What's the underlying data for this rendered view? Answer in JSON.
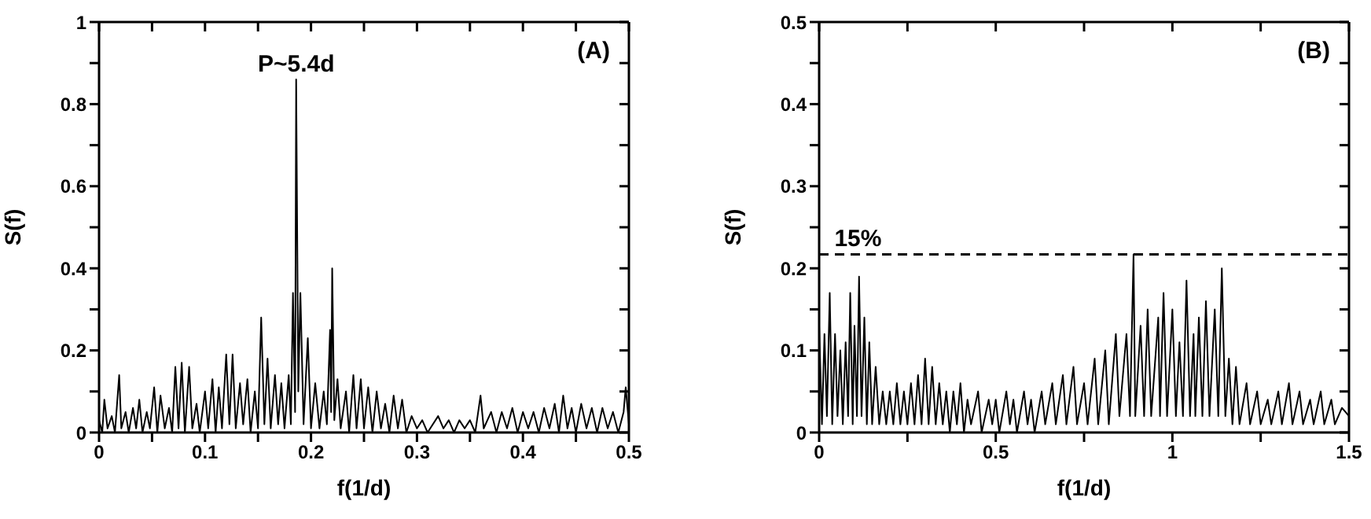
{
  "chart_data": [
    {
      "type": "line",
      "xlabel": "f(1/d)",
      "ylabel": "S(f)",
      "color": "#000000",
      "marker": "none",
      "xlim": [
        0,
        0.5
      ],
      "ylim": [
        0,
        1
      ],
      "xticks": [
        0,
        {
          "value": 0.05,
          "label": null
        },
        0.1,
        {
          "value": 0.15,
          "label": null
        },
        0.2,
        {
          "value": 0.25,
          "label": null
        },
        0.3,
        {
          "value": 0.35,
          "label": null
        },
        0.4,
        {
          "value": 0.45,
          "label": null
        },
        0.5
      ],
      "yticks": [
        0,
        {
          "value": 0.1,
          "label": null
        },
        0.2,
        {
          "value": 0.3,
          "label": null
        },
        0.4,
        {
          "value": 0.5,
          "label": null
        },
        0.6,
        {
          "value": 0.7,
          "label": null
        },
        0.8,
        {
          "value": 0.9,
          "label": null
        },
        1
      ],
      "annotations": [
        {
          "text": "P~5.4d",
          "x": 0.186,
          "y": 0.86
        },
        "(A)"
      ],
      "x": [
        0,
        0.003,
        0.005,
        0.008,
        0.012,
        0.015,
        0.019,
        0.021,
        0.025,
        0.028,
        0.032,
        0.035,
        0.038,
        0.041,
        0.045,
        0.048,
        0.052,
        0.055,
        0.058,
        0.062,
        0.066,
        0.069,
        0.072,
        0.075,
        0.078,
        0.081,
        0.085,
        0.088,
        0.092,
        0.095,
        0.1,
        0.103,
        0.107,
        0.11,
        0.113,
        0.116,
        0.12,
        0.123,
        0.126,
        0.129,
        0.133,
        0.136,
        0.14,
        0.143,
        0.147,
        0.15,
        0.153,
        0.156,
        0.159,
        0.162,
        0.166,
        0.169,
        0.172,
        0.175,
        0.179,
        0.181,
        0.183,
        0.185,
        0.186,
        0.188,
        0.19,
        0.193,
        0.197,
        0.2,
        0.204,
        0.208,
        0.212,
        0.215,
        0.218,
        0.219,
        0.22,
        0.222,
        0.225,
        0.228,
        0.233,
        0.236,
        0.24,
        0.243,
        0.247,
        0.25,
        0.254,
        0.258,
        0.262,
        0.266,
        0.27,
        0.274,
        0.278,
        0.282,
        0.286,
        0.29,
        0.295,
        0.3,
        0.305,
        0.31,
        0.32,
        0.325,
        0.33,
        0.335,
        0.34,
        0.345,
        0.35,
        0.355,
        0.36,
        0.363,
        0.37,
        0.375,
        0.38,
        0.385,
        0.39,
        0.395,
        0.4,
        0.405,
        0.41,
        0.415,
        0.42,
        0.425,
        0.43,
        0.434,
        0.438,
        0.442,
        0.446,
        0.45,
        0.455,
        0.46,
        0.465,
        0.47,
        0.475,
        0.48,
        0.485,
        0.49,
        0.495,
        0.497,
        0.5
      ],
      "values": [
        0.03,
        0.0,
        0.08,
        0.01,
        0.04,
        0.0,
        0.14,
        0.01,
        0.05,
        0.0,
        0.06,
        0.01,
        0.08,
        0.0,
        0.05,
        0.01,
        0.11,
        0.0,
        0.09,
        0.01,
        0.06,
        0.0,
        0.16,
        0.01,
        0.17,
        0.0,
        0.16,
        0.01,
        0.07,
        0.0,
        0.1,
        0.01,
        0.13,
        0.0,
        0.11,
        0.01,
        0.19,
        0.02,
        0.19,
        0.01,
        0.12,
        0.02,
        0.13,
        0.0,
        0.1,
        0.01,
        0.28,
        0.02,
        0.18,
        0.01,
        0.14,
        0.02,
        0.12,
        0.01,
        0.14,
        0.02,
        0.34,
        0.05,
        0.86,
        0.1,
        0.34,
        0.02,
        0.23,
        0.01,
        0.12,
        0.01,
        0.1,
        0.02,
        0.25,
        0.05,
        0.4,
        0.03,
        0.13,
        0.01,
        0.1,
        0.0,
        0.14,
        0.01,
        0.13,
        0.01,
        0.11,
        0.0,
        0.1,
        0.01,
        0.07,
        0.0,
        0.09,
        0.01,
        0.08,
        0.0,
        0.04,
        0.01,
        0.03,
        0.0,
        0.04,
        0.01,
        0.03,
        0.0,
        0.03,
        0.01,
        0.03,
        0.0,
        0.09,
        0.01,
        0.05,
        0.0,
        0.05,
        0.01,
        0.06,
        0.0,
        0.05,
        0.01,
        0.05,
        0.0,
        0.06,
        0.01,
        0.07,
        0.0,
        0.09,
        0.01,
        0.06,
        0.0,
        0.07,
        0.01,
        0.06,
        0.0,
        0.06,
        0.01,
        0.05,
        0.0,
        0.05,
        0.11,
        0.02
      ]
    },
    {
      "type": "line",
      "xlabel": "f(1/d)",
      "ylabel": "S(f)",
      "color": "#000000",
      "marker": "none",
      "xlim": [
        0,
        1.5
      ],
      "ylim": [
        0,
        0.5
      ],
      "xticks": [
        0,
        {
          "value": 0.25,
          "label": null
        },
        0.5,
        {
          "value": 0.75,
          "label": null
        },
        1,
        {
          "value": 1.25,
          "label": null
        },
        1.5
      ],
      "yticks": [
        0,
        {
          "value": 0.05,
          "label": null
        },
        0.1,
        {
          "value": 0.15,
          "label": null
        },
        0.2,
        {
          "value": 0.25,
          "label": null
        },
        0.3,
        {
          "value": 0.35,
          "label": null
        },
        0.4,
        {
          "value": 0.45,
          "label": null
        },
        0.5
      ],
      "ref_lines": [
        {
          "axis": "y",
          "value": 0.217,
          "color": "#000000",
          "line_style": "dashed"
        }
      ],
      "annotations": [
        {
          "text": "15%",
          "x": 0.11,
          "y": 0.217
        },
        "(B)"
      ],
      "x": [
        0,
        0.008,
        0.015,
        0.022,
        0.03,
        0.037,
        0.045,
        0.052,
        0.06,
        0.067,
        0.075,
        0.082,
        0.088,
        0.095,
        0.1,
        0.107,
        0.113,
        0.12,
        0.128,
        0.135,
        0.142,
        0.15,
        0.16,
        0.17,
        0.18,
        0.19,
        0.2,
        0.21,
        0.22,
        0.23,
        0.24,
        0.25,
        0.26,
        0.27,
        0.28,
        0.29,
        0.3,
        0.31,
        0.32,
        0.33,
        0.34,
        0.35,
        0.36,
        0.37,
        0.38,
        0.39,
        0.4,
        0.41,
        0.42,
        0.43,
        0.45,
        0.46,
        0.48,
        0.49,
        0.5,
        0.51,
        0.53,
        0.54,
        0.55,
        0.56,
        0.58,
        0.59,
        0.6,
        0.61,
        0.63,
        0.64,
        0.66,
        0.67,
        0.69,
        0.7,
        0.72,
        0.73,
        0.75,
        0.76,
        0.78,
        0.79,
        0.81,
        0.82,
        0.84,
        0.85,
        0.87,
        0.88,
        0.89,
        0.895,
        0.91,
        0.92,
        0.93,
        0.94,
        0.96,
        0.965,
        0.975,
        0.985,
        1.0,
        1.01,
        1.02,
        1.03,
        1.04,
        1.05,
        1.06,
        1.065,
        1.075,
        1.085,
        1.095,
        1.105,
        1.12,
        1.13,
        1.14,
        1.15,
        1.16,
        1.17,
        1.18,
        1.19,
        1.21,
        1.22,
        1.24,
        1.25,
        1.27,
        1.28,
        1.3,
        1.31,
        1.33,
        1.34,
        1.36,
        1.37,
        1.39,
        1.4,
        1.42,
        1.43,
        1.45,
        1.46,
        1.48,
        1.5
      ],
      "values": [
        0.13,
        0.01,
        0.12,
        0.02,
        0.17,
        0.01,
        0.12,
        0.02,
        0.1,
        0.01,
        0.11,
        0.02,
        0.17,
        0.01,
        0.13,
        0.02,
        0.19,
        0.02,
        0.14,
        0.01,
        0.11,
        0.01,
        0.08,
        0.01,
        0.05,
        0.01,
        0.05,
        0.01,
        0.06,
        0.01,
        0.05,
        0.01,
        0.06,
        0.01,
        0.07,
        0.01,
        0.09,
        0.01,
        0.08,
        0.01,
        0.06,
        0.01,
        0.05,
        0.0,
        0.05,
        0.01,
        0.06,
        0.0,
        0.04,
        0.01,
        0.05,
        0.0,
        0.04,
        0.01,
        0.04,
        0.0,
        0.05,
        0.01,
        0.04,
        0.0,
        0.05,
        0.01,
        0.04,
        0.0,
        0.05,
        0.01,
        0.06,
        0.01,
        0.07,
        0.01,
        0.08,
        0.01,
        0.06,
        0.01,
        0.09,
        0.01,
        0.1,
        0.01,
        0.12,
        0.02,
        0.12,
        0.02,
        0.217,
        0.02,
        0.13,
        0.02,
        0.15,
        0.02,
        0.14,
        0.02,
        0.17,
        0.02,
        0.15,
        0.02,
        0.11,
        0.02,
        0.185,
        0.02,
        0.12,
        0.02,
        0.14,
        0.02,
        0.16,
        0.02,
        0.15,
        0.02,
        0.2,
        0.02,
        0.09,
        0.01,
        0.08,
        0.01,
        0.06,
        0.01,
        0.05,
        0.01,
        0.04,
        0.01,
        0.05,
        0.01,
        0.06,
        0.01,
        0.05,
        0.01,
        0.04,
        0.01,
        0.05,
        0.01,
        0.04,
        0.01,
        0.03,
        0.02
      ]
    }
  ]
}
